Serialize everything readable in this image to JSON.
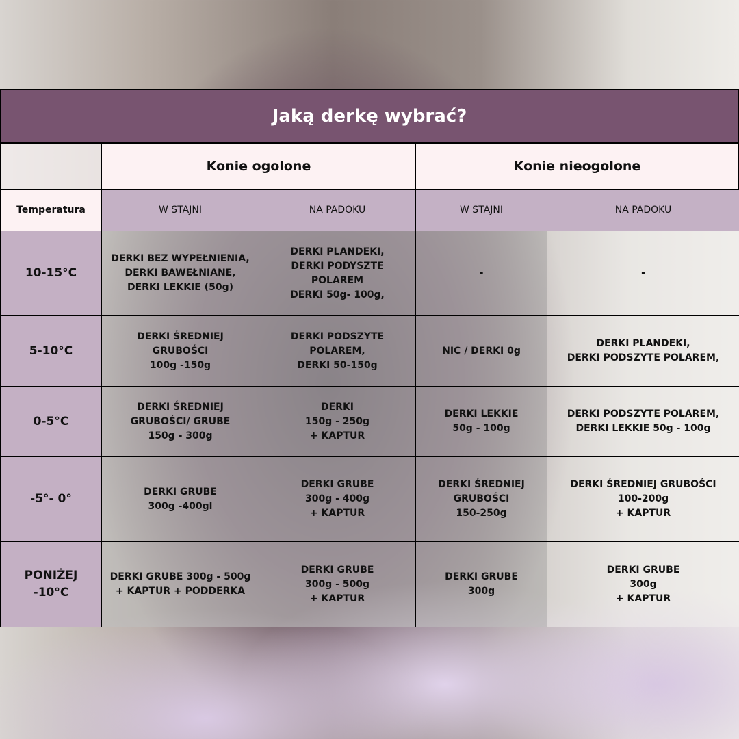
{
  "title": "Jaką derkę wybrać?",
  "groups": [
    "Konie ogolone",
    "Konie nieogolone"
  ],
  "subheaders": [
    "Temperatura",
    "W STAJNI",
    "NA PADOKU",
    "W STAJNI",
    "NA PADOKU"
  ],
  "rows": [
    {
      "temp": "10-15°C",
      "cells": [
        "DERKI BEZ WYPEŁNIENIA,\nDERKI BAWEŁNIANE,\nDERKI LEKKIE (50g)",
        "DERKI PLANDEKI,\nDERKI PODYSZTE\nPOLAREM\nDERKI 50g- 100g,",
        "-",
        "-"
      ]
    },
    {
      "temp": "5-10°C",
      "cells": [
        "DERKI ŚREDNIEJ\nGRUBOŚCI\n100g -150g",
        "DERKI PODSZYTE\nPOLAREM,\nDERKI 50-150g",
        "NIC / DERKI 0g",
        "DERKI PLANDEKI,\nDERKI PODSZYTE POLAREM,"
      ]
    },
    {
      "temp": "0-5°C",
      "cells": [
        "DERKI ŚREDNIEJ\nGRUBOŚCI/ GRUBE\n150g - 300g",
        "DERKI\n150g - 250g\n+ KAPTUR",
        "DERKI LEKKIE\n50g - 100g",
        "DERKI PODSZYTE POLAREM,\nDERKI LEKKIE 50g - 100g"
      ]
    },
    {
      "temp": "-5°- 0°",
      "cells": [
        "DERKI GRUBE\n300g -400gl",
        "DERKI GRUBE\n300g - 400g\n+ KAPTUR",
        "DERKI ŚREDNIEJ\nGRUBOŚCI\n150-250g",
        "DERKI ŚREDNIEJ GRUBOŚCI\n100-200g\n+ KAPTUR"
      ]
    },
    {
      "temp": "PONIŻEJ\n-10°C",
      "cells": [
        "DERKI GRUBE 300g - 500g\n+ KAPTUR + PODDERKA",
        "DERKI GRUBE\n300g - 500g\n+ KAPTUR",
        "DERKI GRUBE\n300g",
        "DERKI GRUBE\n300g\n+ KAPTUR"
      ]
    }
  ]
}
